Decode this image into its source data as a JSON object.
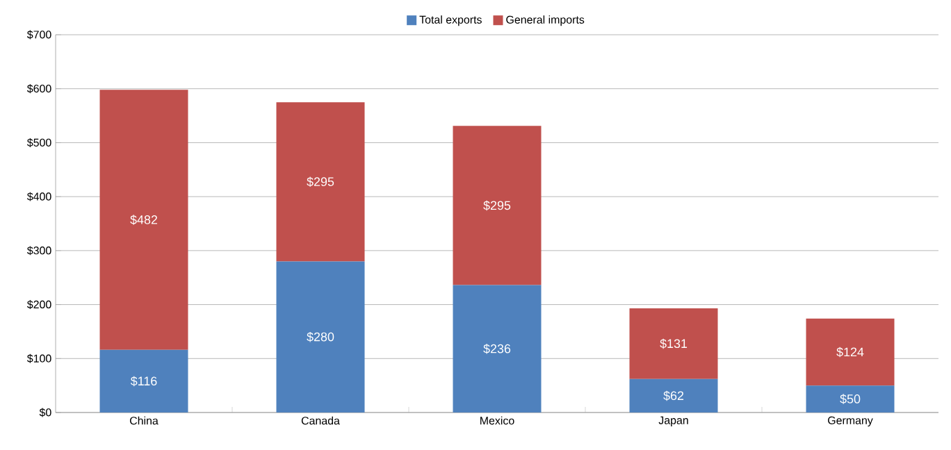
{
  "chart_data": {
    "type": "bar",
    "stacked": true,
    "categories": [
      "China",
      "Canada",
      "Mexico",
      "Japan",
      "Germany"
    ],
    "series": [
      {
        "name": "Total exports",
        "color": "#4f81bd",
        "values": [
          116,
          280,
          236,
          62,
          50
        ],
        "value_labels": [
          "$116",
          "$280",
          "$236",
          "$62",
          "$50"
        ]
      },
      {
        "name": "General imports",
        "color": "#c0504d",
        "values": [
          482,
          295,
          295,
          131,
          124
        ],
        "value_labels": [
          "$482",
          "$295",
          "$295",
          "$131",
          "$124"
        ]
      }
    ],
    "ylim": [
      0,
      700
    ],
    "yticks": [
      {
        "value": 0,
        "label": "$0"
      },
      {
        "value": 100,
        "label": "$100"
      },
      {
        "value": 200,
        "label": "$200"
      },
      {
        "value": 300,
        "label": "$300"
      },
      {
        "value": 400,
        "label": "$400"
      },
      {
        "value": 500,
        "label": "$500"
      },
      {
        "value": 600,
        "label": "$600"
      },
      {
        "value": 700,
        "label": "$700"
      }
    ],
    "grid": "y",
    "legend": "top"
  }
}
